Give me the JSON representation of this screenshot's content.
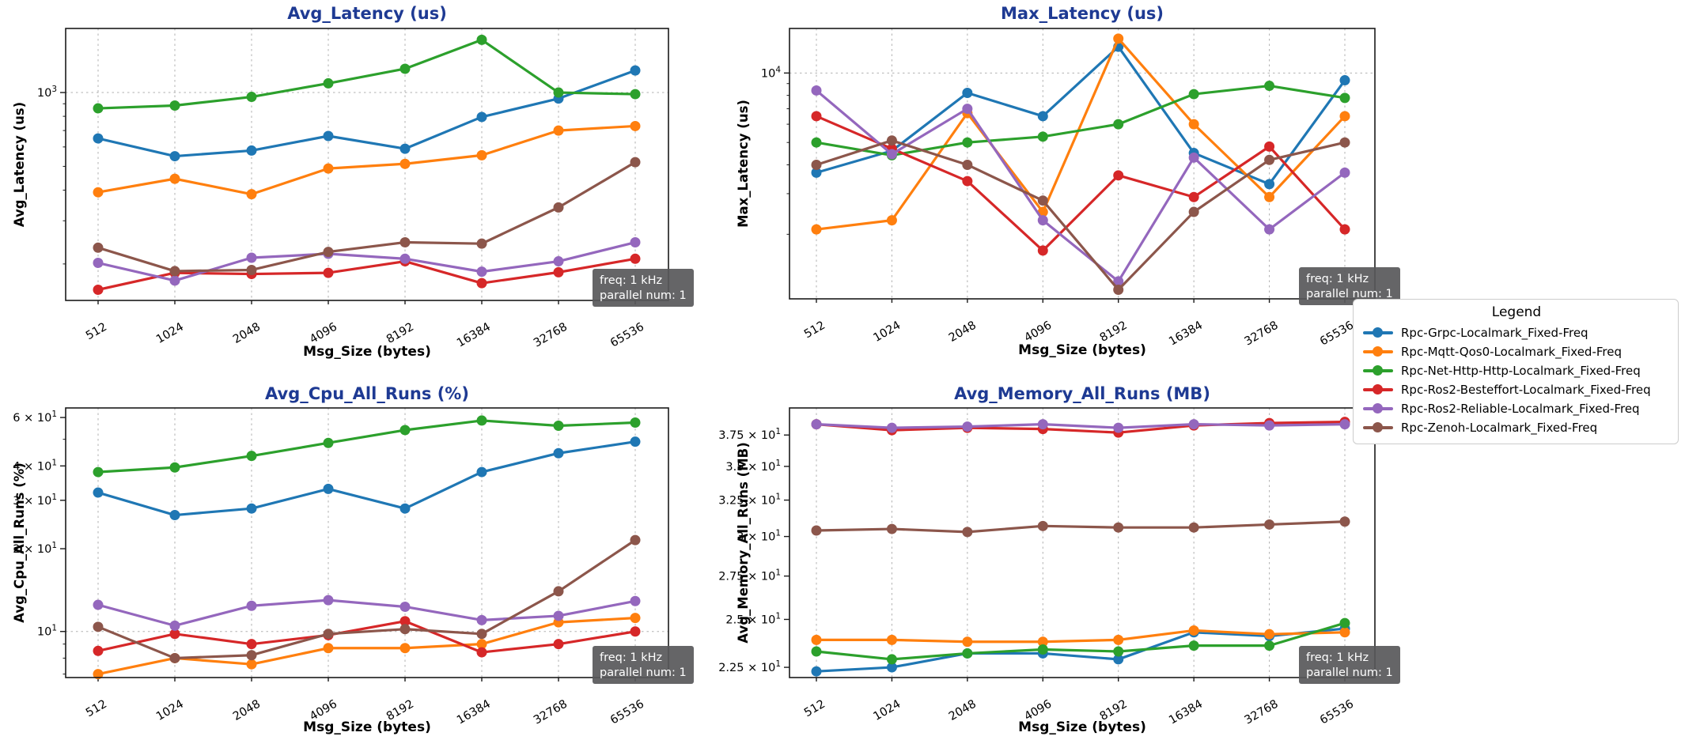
{
  "page": {
    "background": "#ffffff",
    "title_color": "#1e3a93",
    "grid_color": "#b0b0b0",
    "spine_color": "#1a1a1a",
    "annotation_bg": "#58585a",
    "annotation_text_color": "#ffffff"
  },
  "legend": {
    "title": "Legend",
    "items": [
      {
        "label": "Rpc-Grpc-Localmark_Fixed-Freq",
        "color": "#1f77b4"
      },
      {
        "label": "Rpc-Mqtt-Qos0-Localmark_Fixed-Freq",
        "color": "#ff7f0e"
      },
      {
        "label": "Rpc-Net-Http-Http-Localmark_Fixed-Freq",
        "color": "#2ca02c"
      },
      {
        "label": "Rpc-Ros2-Besteffort-Localmark_Fixed-Freq",
        "color": "#d62728"
      },
      {
        "label": "Rpc-Ros2-Reliable-Localmark_Fixed-Freq",
        "color": "#9467bd"
      },
      {
        "label": "Rpc-Zenoh-Localmark_Fixed-Freq",
        "color": "#8c564b"
      }
    ]
  },
  "chart_data": [
    {
      "id": "avg-latency",
      "type": "line",
      "title": "Avg_Latency (us)",
      "xlabel": "Msg_Size (bytes)",
      "ylabel": "Avg_Latency (us)",
      "log_y": true,
      "ylim": [
        142,
        1825
      ],
      "grid": "major",
      "annotation": [
        "freq: 1 kHz",
        "parallel num: 1"
      ],
      "categories": [
        "512",
        "1024",
        "2048",
        "4096",
        "8192",
        "16384",
        "32768",
        "65536"
      ],
      "yticks": [
        {
          "value": 1000,
          "coef": "",
          "exp": "3",
          "grid": true
        }
      ],
      "series": [
        {
          "name": "Rpc-Grpc-Localmark_Fixed-Freq",
          "color": "#1f77b4",
          "values": [
            650,
            550,
            580,
            665,
            590,
            795,
            945,
            1230
          ]
        },
        {
          "name": "Rpc-Mqtt-Qos0-Localmark_Fixed-Freq",
          "color": "#ff7f0e",
          "values": [
            392,
            445,
            385,
            490,
            512,
            555,
            700,
            730
          ]
        },
        {
          "name": "Rpc-Net-Http-Http-Localmark_Fixed-Freq",
          "color": "#2ca02c",
          "values": [
            862,
            885,
            960,
            1090,
            1250,
            1640,
            1000,
            985
          ]
        },
        {
          "name": "Rpc-Ros2-Besteffort-Localmark_Fixed-Freq",
          "color": "#d62728",
          "values": [
            157,
            184,
            182,
            184,
            205,
            167,
            185,
            210
          ]
        },
        {
          "name": "Rpc-Ros2-Reliable-Localmark_Fixed-Freq",
          "color": "#9467bd",
          "values": [
            202,
            171,
            212,
            220,
            210,
            186,
            205,
            245
          ]
        },
        {
          "name": "Rpc-Zenoh-Localmark_Fixed-Freq",
          "color": "#8c564b",
          "values": [
            233,
            187,
            189,
            224,
            245,
            242,
            340,
            520
          ]
        }
      ]
    },
    {
      "id": "max-latency",
      "type": "line",
      "title": "Max_Latency (us)",
      "xlabel": "Msg_Size (bytes)",
      "ylabel": "Max_Latency (us)",
      "log_y": true,
      "ylim": [
        1050,
        15600
      ],
      "grid": "major",
      "annotation": [
        "freq: 1 kHz",
        "parallel num: 1"
      ],
      "categories": [
        "512",
        "1024",
        "2048",
        "4096",
        "8192",
        "16384",
        "32768",
        "65536"
      ],
      "yticks": [
        {
          "value": 10000,
          "coef": "",
          "exp": "4",
          "grid": true
        }
      ],
      "series": [
        {
          "name": "Rpc-Grpc-Localmark_Fixed-Freq",
          "color": "#1f77b4",
          "values": [
            3700,
            4600,
            8200,
            6500,
            13000,
            4500,
            3300,
            9300
          ]
        },
        {
          "name": "Rpc-Mqtt-Qos0-Localmark_Fixed-Freq",
          "color": "#ff7f0e",
          "values": [
            2100,
            2300,
            6700,
            2500,
            14100,
            6000,
            2900,
            6500
          ]
        },
        {
          "name": "Rpc-Net-Http-Http-Localmark_Fixed-Freq",
          "color": "#2ca02c",
          "values": [
            5000,
            4400,
            5000,
            5300,
            6000,
            8100,
            8800,
            7800
          ]
        },
        {
          "name": "Rpc-Ros2-Besteffort-Localmark_Fixed-Freq",
          "color": "#d62728",
          "values": [
            6500,
            4700,
            3400,
            1700,
            3600,
            2900,
            4800,
            2100
          ]
        },
        {
          "name": "Rpc-Ros2-Reliable-Localmark_Fixed-Freq",
          "color": "#9467bd",
          "values": [
            8400,
            4450,
            7000,
            2300,
            1250,
            4300,
            2100,
            3700
          ]
        },
        {
          "name": "Rpc-Zenoh-Localmark_Fixed-Freq",
          "color": "#8c564b",
          "values": [
            4000,
            5100,
            4000,
            2800,
            1150,
            2500,
            4200,
            5000
          ]
        }
      ]
    },
    {
      "id": "avg-cpu",
      "type": "line",
      "title": "Avg_Cpu_All_Runs (%)",
      "xlabel": "Msg_Size (bytes)",
      "ylabel": "Avg_Cpu_All_Runs (%)",
      "log_y": true,
      "ylim": [
        6.8,
        65
      ],
      "grid": "major",
      "annotation": [
        "freq: 1 kHz",
        "parallel num: 1"
      ],
      "categories": [
        "512",
        "1024",
        "2048",
        "4096",
        "8192",
        "16384",
        "32768",
        "65536"
      ],
      "yticks": [
        {
          "value": 10,
          "coef": "",
          "exp": "1",
          "grid": true
        },
        {
          "value": 20,
          "coef": "2",
          "exp": "1",
          "grid": false
        },
        {
          "value": 30,
          "coef": "3",
          "exp": "1",
          "grid": false
        },
        {
          "value": 40,
          "coef": "4",
          "exp": "1",
          "grid": false
        },
        {
          "value": 60,
          "coef": "6",
          "exp": "1",
          "grid": false
        }
      ],
      "series": [
        {
          "name": "Rpc-Grpc-Localmark_Fixed-Freq",
          "color": "#1f77b4",
          "values": [
            32,
            26.5,
            28,
            33,
            28,
            38,
            44.5,
            49
          ]
        },
        {
          "name": "Rpc-Mqtt-Qos0-Localmark_Fixed-Freq",
          "color": "#ff7f0e",
          "values": [
            7.0,
            8.0,
            7.6,
            8.7,
            8.7,
            9.0,
            10.8,
            11.2
          ]
        },
        {
          "name": "Rpc-Net-Http-Http-Localmark_Fixed-Freq",
          "color": "#2ca02c",
          "values": [
            38,
            39.5,
            43.5,
            48.5,
            54,
            58.5,
            56,
            57.5
          ]
        },
        {
          "name": "Rpc-Ros2-Besteffort-Localmark_Fixed-Freq",
          "color": "#d62728",
          "values": [
            8.5,
            9.8,
            9.0,
            9.7,
            10.9,
            8.4,
            9.0,
            10.0
          ]
        },
        {
          "name": "Rpc-Ros2-Reliable-Localmark_Fixed-Freq",
          "color": "#9467bd",
          "values": [
            12.5,
            10.5,
            12.4,
            13.0,
            12.3,
            11.0,
            11.4,
            12.9
          ]
        },
        {
          "name": "Rpc-Zenoh-Localmark_Fixed-Freq",
          "color": "#8c564b",
          "values": [
            10.4,
            8.0,
            8.2,
            9.8,
            10.2,
            9.8,
            14.0,
            21.5
          ]
        }
      ]
    },
    {
      "id": "avg-memory",
      "type": "line",
      "title": "Avg_Memory_All_Runs (MB)",
      "xlabel": "Msg_Size (bytes)",
      "ylabel": "Avg_Memory_All_Runs (MB)",
      "log_y": true,
      "ylim": [
        22.0,
        39.8
      ],
      "grid": "none",
      "annotation": [
        "freq: 1 kHz",
        "parallel num: 1"
      ],
      "categories": [
        "512",
        "1024",
        "2048",
        "4096",
        "8192",
        "16384",
        "32768",
        "65536"
      ],
      "yticks": [
        {
          "value": 22.5,
          "coef": "2.25",
          "exp": "1",
          "grid": false
        },
        {
          "value": 25.0,
          "coef": "2.5",
          "exp": "1",
          "grid": false
        },
        {
          "value": 27.5,
          "coef": "2.75",
          "exp": "1",
          "grid": false
        },
        {
          "value": 30.0,
          "coef": "3",
          "exp": "1",
          "grid": false
        },
        {
          "value": 32.5,
          "coef": "3.25",
          "exp": "1",
          "grid": false
        },
        {
          "value": 35.0,
          "coef": "3.5",
          "exp": "1",
          "grid": false
        },
        {
          "value": 37.5,
          "coef": "3.75",
          "exp": "1",
          "grid": false
        }
      ],
      "series": [
        {
          "name": "Rpc-Grpc-Localmark_Fixed-Freq",
          "color": "#1f77b4",
          "values": [
            22.3,
            22.5,
            23.2,
            23.2,
            22.9,
            24.3,
            24.1,
            24.5
          ]
        },
        {
          "name": "Rpc-Mqtt-Qos0-Localmark_Fixed-Freq",
          "color": "#ff7f0e",
          "values": [
            23.9,
            23.9,
            23.8,
            23.8,
            23.9,
            24.4,
            24.2,
            24.3
          ]
        },
        {
          "name": "Rpc-Net-Http-Http-Localmark_Fixed-Freq",
          "color": "#2ca02c",
          "values": [
            23.3,
            22.9,
            23.2,
            23.4,
            23.3,
            23.6,
            23.6,
            24.8
          ]
        },
        {
          "name": "Rpc-Ros2-Besteffort-Localmark_Fixed-Freq",
          "color": "#d62728",
          "values": [
            38.4,
            37.9,
            38.1,
            38.0,
            37.7,
            38.3,
            38.5,
            38.6
          ]
        },
        {
          "name": "Rpc-Ros2-Reliable-Localmark_Fixed-Freq",
          "color": "#9467bd",
          "values": [
            38.4,
            38.1,
            38.2,
            38.4,
            38.1,
            38.4,
            38.3,
            38.4
          ]
        },
        {
          "name": "Rpc-Zenoh-Localmark_Fixed-Freq",
          "color": "#8c564b",
          "values": [
            30.4,
            30.5,
            30.3,
            30.7,
            30.6,
            30.6,
            30.8,
            31.0
          ]
        }
      ]
    }
  ]
}
